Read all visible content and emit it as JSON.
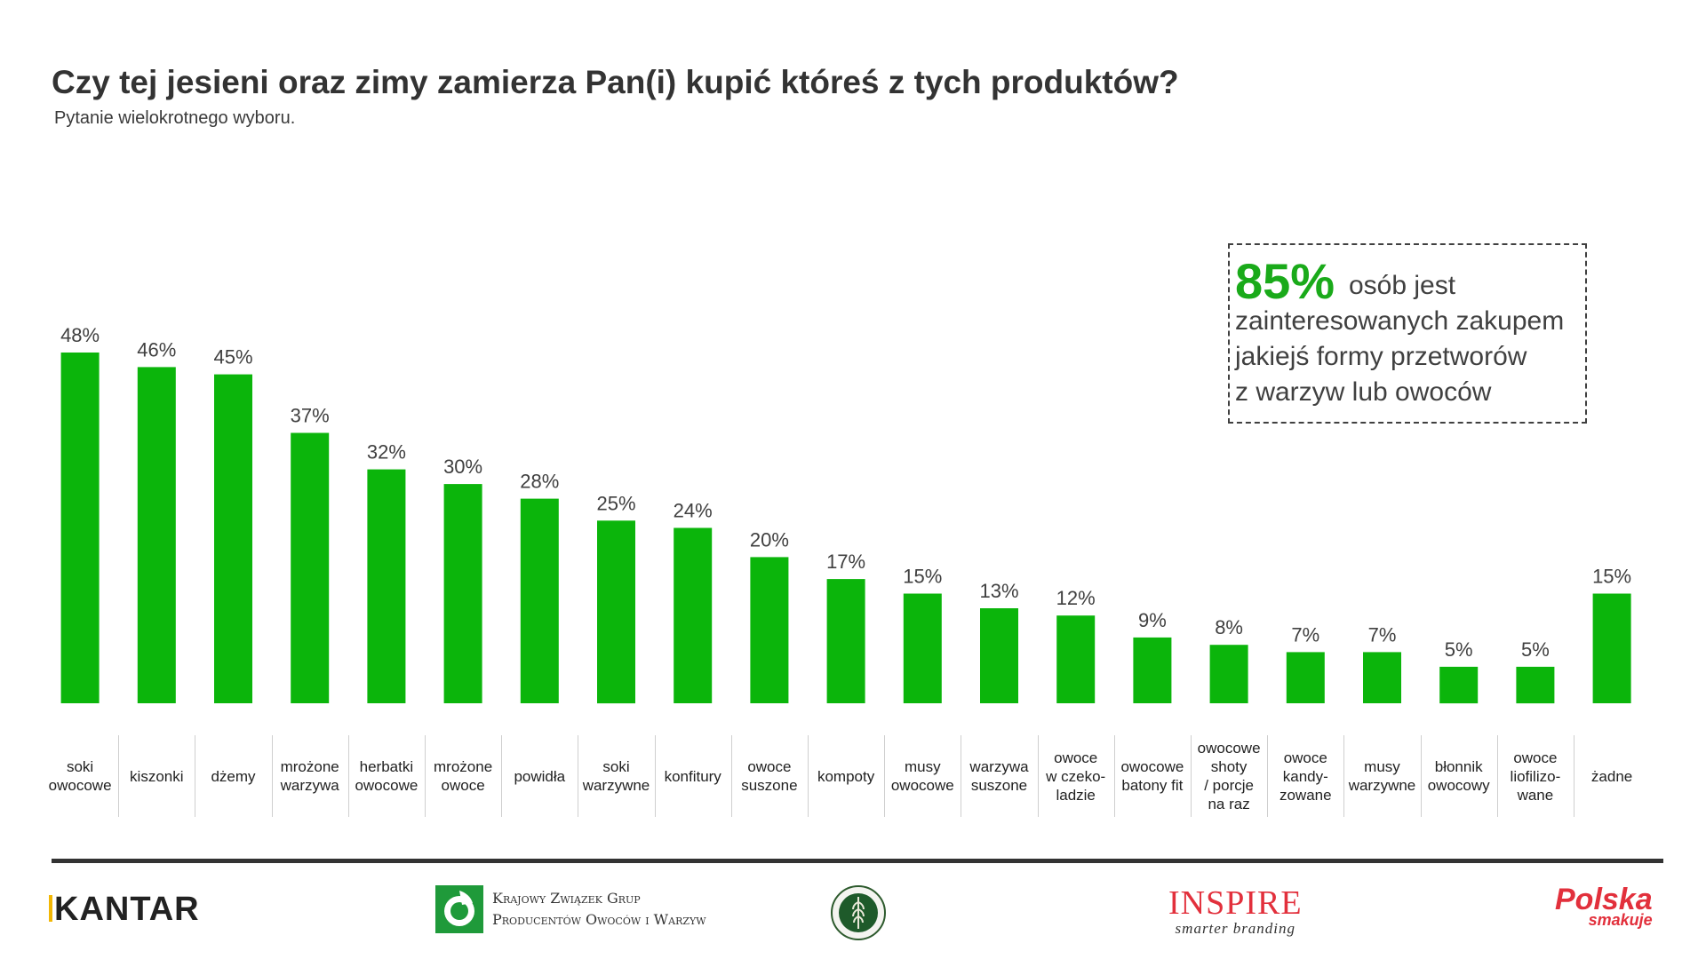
{
  "title": "Czy tej jesieni oraz zimy zamierza Pan(i) kupić któreś z tych produktów?",
  "subtitle": "Pytanie wielokrotnego wyboru.",
  "callout": {
    "percent": "85%",
    "lines": [
      "osób jest",
      "zainteresowanych zakupem",
      "jakiejś formy przetworów",
      "z warzyw lub owoców"
    ]
  },
  "colors": {
    "bar": "#0bb50b",
    "callout_percent": "#1aaa1a",
    "footer_rule": "#333333"
  },
  "chart_data": {
    "type": "bar",
    "categories": [
      "soki\nowocowe",
      "kiszonki",
      "dżemy",
      "mrożone\nwarzywa",
      "herbatki\nowocowe",
      "mrożone\nowoce",
      "powidła",
      "soki\nwarzywne",
      "konfitury",
      "owoce\nsuszone",
      "kompoty",
      "musy\nowocowe",
      "warzywa\nsuszone",
      "owoce\nw czeko-\nladzie",
      "owocowe\nbatony fit",
      "owocowe\nshoty\n/ porcje\nna raz",
      "owoce\nkandy-\nzowane",
      "musy\nwarzywne",
      "błonnik\nowocowy",
      "owoce\nliofilizo-\nwane",
      "żadne"
    ],
    "values": [
      48,
      46,
      45,
      37,
      32,
      30,
      28,
      25,
      24,
      20,
      17,
      15,
      13,
      12,
      9,
      8,
      7,
      7,
      5,
      5,
      15
    ],
    "labels": [
      "48%",
      "46%",
      "45%",
      "37%",
      "32%",
      "30%",
      "28%",
      "25%",
      "24%",
      "20%",
      "17%",
      "15%",
      "13%",
      "12%",
      "9%",
      "8%",
      "7%",
      "7%",
      "5%",
      "5%",
      "15%"
    ],
    "ylim": [
      0,
      48
    ],
    "grid": false,
    "legend": "none"
  },
  "footer_logos": {
    "kantar": "KANTAR",
    "kzgp": [
      "Krajowy Związek Grup",
      "Producentów Owoców i Warzyw"
    ],
    "inspire": {
      "name": "INSPIRE",
      "tagline": "smarter branding"
    },
    "polska": {
      "name": "Polska",
      "tagline": "smakuje"
    }
  }
}
